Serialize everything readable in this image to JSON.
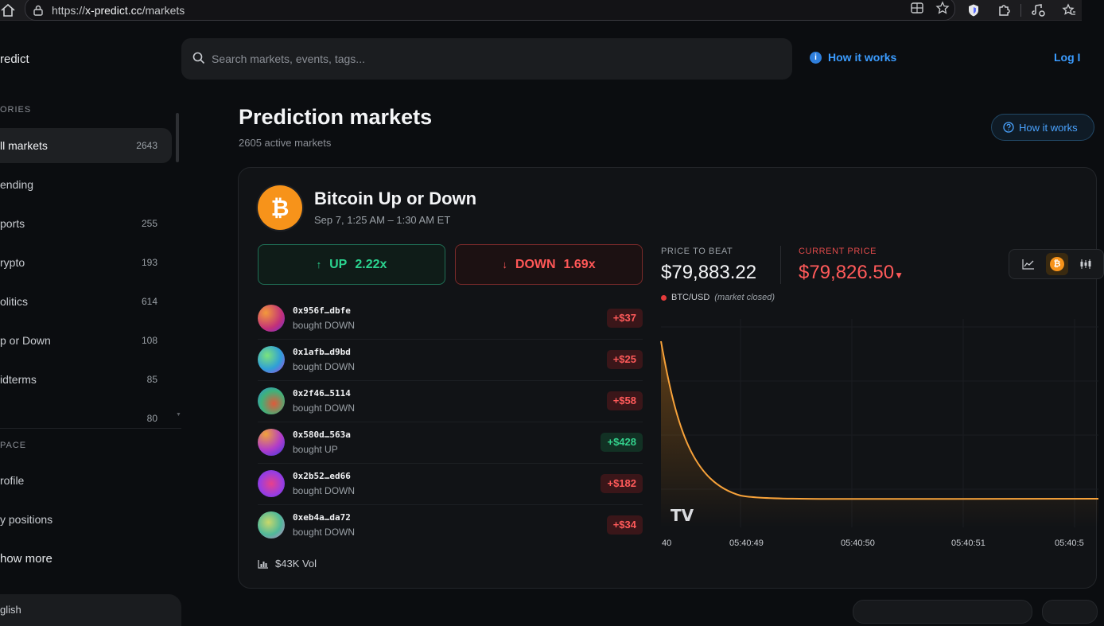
{
  "browser": {
    "url_prefix": "https://",
    "url_host": "x-predict.cc",
    "url_path": "/markets"
  },
  "sidebar": {
    "brand": "redict",
    "categories_title": "ORIES",
    "items": [
      {
        "label": "ll markets",
        "count": "2643"
      },
      {
        "label": "ending",
        "count": ""
      },
      {
        "label": "ports",
        "count": "255"
      },
      {
        "label": "rypto",
        "count": "193"
      },
      {
        "label": "olitics",
        "count": "614"
      },
      {
        "label": "p or Down",
        "count": "108"
      },
      {
        "label": "idterms",
        "count": "85"
      },
      {
        "label": "",
        "count": "80"
      }
    ],
    "workspace_title": "PACE",
    "workspace_items": [
      {
        "label": "rofile"
      },
      {
        "label": "y positions"
      },
      {
        "label": "how more"
      }
    ],
    "language": "glish"
  },
  "header": {
    "search_placeholder": "Search markets, events, tags...",
    "how_it_works": "How it works",
    "login": "Log I"
  },
  "page": {
    "title": "Prediction markets",
    "subtitle": "2605 active markets",
    "how_button": "How it works"
  },
  "market": {
    "coin_symbol": "₿",
    "title": "Bitcoin Up or Down",
    "time": "Sep 7, 1:25 AM – 1:30 AM ET",
    "up_label": "UP",
    "up_odds": "2.22x",
    "down_label": "DOWN",
    "down_odds": "1.69x",
    "trades": [
      {
        "addr": "0x956f…dbfe",
        "action": "bought DOWN",
        "amount": "+$37",
        "kind": "neg"
      },
      {
        "addr": "0x1afb…d9bd",
        "action": "bought DOWN",
        "amount": "+$25",
        "kind": "neg"
      },
      {
        "addr": "0x2f46…5114",
        "action": "bought DOWN",
        "amount": "+$58",
        "kind": "neg"
      },
      {
        "addr": "0x580d…563a",
        "action": "bought UP",
        "amount": "+$428",
        "kind": "pos"
      },
      {
        "addr": "0x2b52…ed66",
        "action": "bought DOWN",
        "amount": "+$182",
        "kind": "neg"
      },
      {
        "addr": "0xeb4a…da72",
        "action": "bought DOWN",
        "amount": "+$34",
        "kind": "neg"
      }
    ],
    "volume": "$43K Vol",
    "price_to_beat_label": "PRICE TO BEAT",
    "price_to_beat": "$79,883.22",
    "current_price_label": "CURRENT PRICE",
    "current_price": "$79,826.50",
    "current_price_arrow": "▼",
    "pair": "BTC/USD",
    "pair_status": "(market closed)",
    "chart_x_labels": [
      "40",
      "05:40:49",
      "05:40:50",
      "05:40:51",
      "05:40:5"
    ],
    "chart_logo": "TV"
  },
  "colors": {
    "accent_blue": "#3b9cff",
    "up_green": "#2bd38f",
    "down_red": "#ff5757",
    "btc_orange": "#f7931a"
  }
}
